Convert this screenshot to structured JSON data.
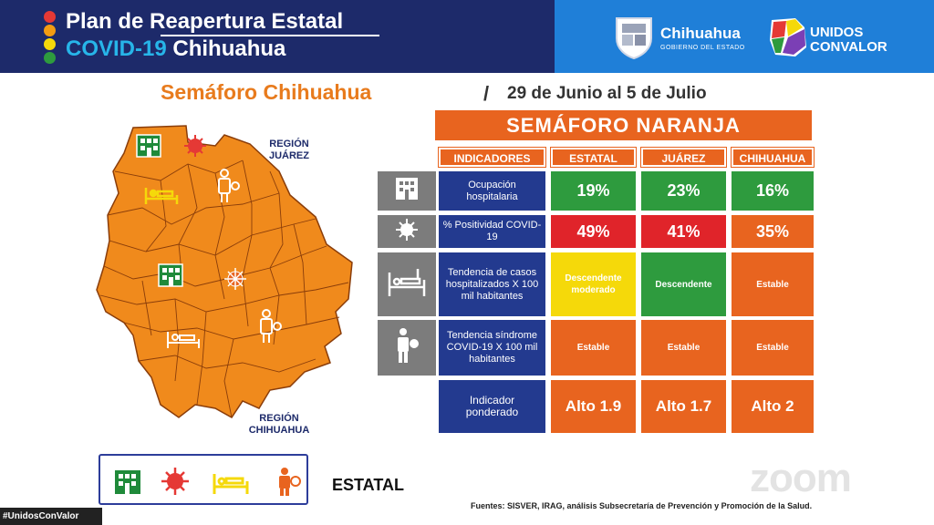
{
  "header": {
    "title_line1": "Plan de Reapertura Estatal",
    "title_line2_a": "COVID-19",
    "title_line2_b": "Chihuahua",
    "gov_name": "Chihuahua",
    "gov_subtitle": "GOBIERNO DEL ESTADO",
    "unidos_line1": "UNIDOS",
    "unidos_line2": "CONVALOR",
    "traffic_colors": [
      "#e53935",
      "#f39c12",
      "#f5d90a",
      "#2e9b3e"
    ]
  },
  "subtitle": {
    "title": "Semáforo Chihuahua",
    "separator": "/",
    "date_range": "29 de Junio al 5 de Julio"
  },
  "map": {
    "region_north": [
      "REGIÓN",
      "JUÁREZ"
    ],
    "region_south": [
      "REGIÓN",
      "CHIHUAHUA"
    ],
    "fill_color": "#f08a1c"
  },
  "legend": {
    "icons": [
      "hospital-icon",
      "virus-icon",
      "hospital-bed-icon",
      "person-virus-icon"
    ],
    "label": "ESTATAL"
  },
  "table": {
    "banner": "SEMÁFORO NARANJA",
    "headers": [
      "INDICADORES",
      "ESTATAL",
      "JUÁREZ",
      "CHIHUAHUA"
    ],
    "rows": [
      {
        "icon": "hospital-icon",
        "indicator": "Ocupación hospitalaria",
        "values": [
          "19%",
          "23%",
          "16%"
        ],
        "colors": [
          "#2e9b3e",
          "#2e9b3e",
          "#2e9b3e"
        ]
      },
      {
        "icon": "virus-icon",
        "indicator": "% Positividad COVID-19",
        "values": [
          "49%",
          "41%",
          "35%"
        ],
        "colors": [
          "#e0242a",
          "#e0242a",
          "#e8641f"
        ]
      },
      {
        "icon": "hospital-bed-icon",
        "indicator": "Tendencia de casos hospitalizados X 100 mil habitantes",
        "values": [
          "Descendente moderado",
          "Descendente",
          "Estable"
        ],
        "colors": [
          "#f5d90a",
          "#2e9b3e",
          "#e8641f"
        ]
      },
      {
        "icon": "person-virus-icon",
        "indicator": "Tendencia síndrome COVID-19 X 100 mil habitantes",
        "values": [
          "Estable",
          "Estable",
          "Estable"
        ],
        "colors": [
          "#e8641f",
          "#e8641f",
          "#e8641f"
        ]
      },
      {
        "icon": "",
        "indicator": "Indicador ponderado",
        "values": [
          "Alto 1.9",
          "Alto 1.7",
          "Alto 2"
        ],
        "colors": [
          "#e8641f",
          "#e8641f",
          "#e8641f"
        ]
      }
    ]
  },
  "footnote": "Fuentes: SISVER, IRAG, análisis Subsecretaría de Prevención y Promoción de la Salud.",
  "watermark": "zoom",
  "hashtag": "#UnidosConValor"
}
